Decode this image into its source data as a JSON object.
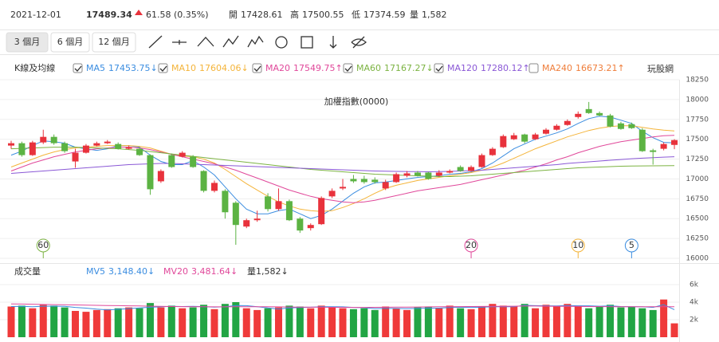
{
  "header": {
    "date": "2021-12-01",
    "price": "17489.34",
    "change": "61.58 (0.35%)",
    "items": [
      {
        "label": "開",
        "value": "17428.61"
      },
      {
        "label": "高",
        "value": "17500.55"
      },
      {
        "label": "低",
        "value": "17374.59"
      },
      {
        "label": "量",
        "value": "1,582"
      }
    ]
  },
  "toolbar": {
    "ranges": [
      "3 個月",
      "6 個月",
      "12 個月"
    ],
    "active": 0
  },
  "brand": "玩股網",
  "chart_data": [
    {
      "type": "candlestick",
      "title": "加權指數(0000)",
      "legend_title": "K線及均線",
      "up_color": "#e8323c",
      "down_color": "#5cb343",
      "open": [
        17420,
        17450,
        17300,
        17460,
        17530,
        17450,
        17220,
        17330,
        17420,
        17450,
        17440,
        17380,
        17380,
        17300,
        16970,
        17300,
        17280,
        17280,
        17100,
        16850,
        16850,
        16700,
        16400,
        16480,
        16780,
        16620,
        16720,
        16500,
        16380,
        16430,
        16780,
        16880,
        17000,
        17000,
        16990,
        16880,
        16960,
        17040,
        17080,
        17080,
        17040,
        17080,
        17150,
        17100,
        17150,
        17300,
        17400,
        17500,
        17560,
        17500,
        17570,
        17620,
        17680,
        17780,
        17880,
        17830,
        17800,
        17700,
        17690,
        17620,
        17360,
        17380,
        17428.61
      ],
      "high": [
        17480,
        17470,
        17480,
        17620,
        17560,
        17470,
        17380,
        17440,
        17470,
        17490,
        17460,
        17420,
        17400,
        17310,
        17120,
        17320,
        17350,
        17300,
        17110,
        16980,
        16870,
        16720,
        16500,
        16600,
        16820,
        16880,
        16740,
        16520,
        16440,
        16780,
        16880,
        17000,
        17050,
        17040,
        17020,
        16990,
        17080,
        17100,
        17100,
        17090,
        17110,
        17120,
        17170,
        17170,
        17320,
        17400,
        17560,
        17580,
        17570,
        17580,
        17640,
        17690,
        17750,
        17850,
        17970,
        17850,
        17820,
        17720,
        17710,
        17640,
        17380,
        17460,
        17500.55
      ],
      "low": [
        17380,
        17280,
        17290,
        17440,
        17430,
        17330,
        17140,
        17320,
        17410,
        17440,
        17370,
        17370,
        17290,
        16800,
        16950,
        17140,
        17270,
        17140,
        16830,
        16830,
        16500,
        16170,
        16380,
        16460,
        16590,
        16600,
        16470,
        16320,
        16350,
        16420,
        16760,
        16860,
        16950,
        16940,
        16940,
        16860,
        16950,
        17020,
        17030,
        16990,
        17030,
        17070,
        17090,
        17090,
        17140,
        17290,
        17390,
        17490,
        17450,
        17490,
        17560,
        17610,
        17670,
        17760,
        17820,
        17790,
        17650,
        17620,
        17630,
        17340,
        17180,
        17360,
        17374.59
      ],
      "close": [
        17450,
        17300,
        17460,
        17530,
        17450,
        17350,
        17330,
        17420,
        17450,
        17470,
        17380,
        17400,
        17300,
        16870,
        17100,
        17150,
        17330,
        17150,
        16850,
        16950,
        16580,
        16420,
        16480,
        16500,
        16620,
        16720,
        16480,
        16350,
        16420,
        16760,
        16850,
        16900,
        16970,
        16960,
        16960,
        16960,
        17060,
        17070,
        17040,
        17000,
        17080,
        17100,
        17100,
        17150,
        17300,
        17380,
        17540,
        17550,
        17470,
        17560,
        17620,
        17670,
        17730,
        17820,
        17830,
        17800,
        17660,
        17630,
        17640,
        17350,
        17340,
        17440,
        17489.34
      ],
      "ylim": [
        16000,
        18250
      ],
      "yticks": [
        16000,
        16250,
        16500,
        16750,
        17000,
        17250,
        17500,
        17750,
        18000,
        18250
      ],
      "grid": true,
      "series": [
        {
          "name": "MA5",
          "color": "#3b8de0",
          "checked": true,
          "value_label": "17453.75↓",
          "values": [
            17300,
            17350,
            17420,
            17480,
            17470,
            17450,
            17400,
            17380,
            17360,
            17380,
            17420,
            17420,
            17400,
            17300,
            17220,
            17180,
            17180,
            17230,
            17150,
            17050,
            16900,
            16750,
            16620,
            16560,
            16560,
            16600,
            16620,
            16560,
            16500,
            16540,
            16620,
            16720,
            16820,
            16900,
            16950,
            16960,
            16980,
            17000,
            17020,
            17030,
            17040,
            17060,
            17070,
            17090,
            17130,
            17200,
            17290,
            17380,
            17440,
            17500,
            17540,
            17580,
            17630,
            17700,
            17760,
            17790,
            17780,
            17740,
            17700,
            17600,
            17520,
            17460,
            17453.75
          ]
        },
        {
          "name": "MA10",
          "color": "#f4b43a",
          "checked": true,
          "value_label": "17604.06↓",
          "values": [
            17150,
            17200,
            17250,
            17300,
            17340,
            17370,
            17390,
            17400,
            17410,
            17420,
            17420,
            17420,
            17410,
            17390,
            17350,
            17310,
            17290,
            17280,
            17250,
            17200,
            17120,
            17030,
            16940,
            16860,
            16780,
            16710,
            16660,
            16620,
            16600,
            16590,
            16600,
            16640,
            16690,
            16750,
            16820,
            16880,
            16920,
            16950,
            16980,
            17000,
            17020,
            17040,
            17060,
            17080,
            17110,
            17150,
            17200,
            17260,
            17320,
            17380,
            17430,
            17480,
            17530,
            17570,
            17610,
            17640,
            17660,
            17670,
            17670,
            17650,
            17630,
            17615,
            17604.06
          ]
        },
        {
          "name": "MA20",
          "color": "#e0489a",
          "checked": true,
          "value_label": "17549.75↑",
          "values": [
            17100,
            17150,
            17200,
            17240,
            17280,
            17310,
            17340,
            17360,
            17380,
            17390,
            17400,
            17400,
            17390,
            17370,
            17340,
            17310,
            17280,
            17250,
            17220,
            17190,
            17150,
            17110,
            17060,
            17010,
            16960,
            16910,
            16860,
            16820,
            16780,
            16750,
            16730,
            16710,
            16700,
            16710,
            16730,
            16760,
            16790,
            16820,
            16850,
            16870,
            16890,
            16910,
            16930,
            16960,
            16990,
            17020,
            17050,
            17080,
            17110,
            17150,
            17190,
            17240,
            17280,
            17330,
            17370,
            17410,
            17440,
            17470,
            17490,
            17510,
            17530,
            17545,
            17549.75
          ]
        },
        {
          "name": "MA60",
          "color": "#7cb342",
          "checked": true,
          "value_label": "17167.27↓",
          "values": [
            17380,
            17385,
            17390,
            17395,
            17400,
            17400,
            17400,
            17395,
            17390,
            17385,
            17380,
            17370,
            17360,
            17345,
            17330,
            17315,
            17300,
            17285,
            17270,
            17255,
            17240,
            17225,
            17210,
            17195,
            17180,
            17165,
            17150,
            17135,
            17120,
            17110,
            17100,
            17090,
            17080,
            17070,
            17060,
            17055,
            17050,
            17045,
            17040,
            17035,
            17030,
            17030,
            17035,
            17040,
            17050,
            17060,
            17070,
            17080,
            17090,
            17100,
            17110,
            17120,
            17130,
            17140,
            17145,
            17150,
            17155,
            17160,
            17162,
            17164,
            17165,
            17166,
            17167.27
          ]
        },
        {
          "name": "MA120",
          "color": "#8a58d6",
          "checked": true,
          "value_label": "17280.12↑",
          "values": [
            17070,
            17080,
            17090,
            17100,
            17110,
            17120,
            17130,
            17140,
            17150,
            17160,
            17170,
            17180,
            17185,
            17190,
            17195,
            17195,
            17190,
            17185,
            17180,
            17175,
            17170,
            17165,
            17160,
            17155,
            17150,
            17145,
            17140,
            17135,
            17130,
            17125,
            17120,
            17115,
            17110,
            17105,
            17100,
            17097,
            17095,
            17093,
            17092,
            17090,
            17092,
            17095,
            17100,
            17105,
            17110,
            17120,
            17130,
            17140,
            17150,
            17160,
            17170,
            17180,
            17195,
            17205,
            17215,
            17225,
            17235,
            17245,
            17255,
            17262,
            17268,
            17275,
            17280.12
          ]
        },
        {
          "name": "MA240",
          "color": "#ef7d3a",
          "checked": false,
          "value_label": "16673.21↑"
        }
      ],
      "annotations": [
        {
          "text": 60,
          "series": "MA60"
        },
        {
          "text": 20,
          "series": "MA20"
        },
        {
          "text": 10,
          "series": "MA10"
        },
        {
          "text": 5,
          "series": "MA5"
        }
      ]
    },
    {
      "type": "bar",
      "title": "成交量",
      "up_color": "#ef3a3a",
      "down_color": "#22a544",
      "values": [
        3500,
        3600,
        3300,
        3700,
        3600,
        3400,
        3000,
        2900,
        3100,
        3200,
        3300,
        3400,
        3300,
        3900,
        3400,
        3600,
        3300,
        3400,
        3700,
        3200,
        3800,
        4000,
        3300,
        3100,
        3300,
        3400,
        3600,
        3500,
        3300,
        3600,
        3400,
        3300,
        3200,
        3300,
        3100,
        3500,
        3300,
        3100,
        3400,
        3500,
        3300,
        3600,
        3300,
        3200,
        3500,
        3800,
        3600,
        3500,
        3800,
        3300,
        3700,
        3500,
        3800,
        3600,
        3300,
        3500,
        3700,
        3400,
        3500,
        3300,
        3100,
        4300,
        1582
      ],
      "ylim": [
        0,
        6000
      ],
      "yticks": [
        {
          "value": 2000,
          "label": "2k"
        },
        {
          "value": 4000,
          "label": "4k"
        },
        {
          "value": 6000,
          "label": "6k"
        }
      ],
      "series": [
        {
          "name": "MV5",
          "color": "#3b8de0",
          "value_label": "3,148.40↓",
          "values": [
            3500,
            3520,
            3480,
            3540,
            3540,
            3520,
            3400,
            3320,
            3200,
            3120,
            3180,
            3260,
            3340,
            3420,
            3460,
            3520,
            3500,
            3520,
            3480,
            3440,
            3480,
            3620,
            3600,
            3480,
            3340,
            3220,
            3340,
            3380,
            3420,
            3480,
            3480,
            3460,
            3400,
            3360,
            3260,
            3280,
            3280,
            3260,
            3280,
            3320,
            3320,
            3380,
            3420,
            3400,
            3420,
            3480,
            3480,
            3480,
            3640,
            3600,
            3580,
            3560,
            3620,
            3580,
            3580,
            3540,
            3580,
            3500,
            3480,
            3480,
            3400,
            3720,
            3148.4
          ]
        },
        {
          "name": "MV20",
          "color": "#e0489a",
          "value_label": "3,481.64↓",
          "values": [
            3800,
            3780,
            3760,
            3740,
            3720,
            3700,
            3680,
            3660,
            3640,
            3620,
            3600,
            3580,
            3560,
            3540,
            3520,
            3500,
            3490,
            3480,
            3470,
            3460,
            3460,
            3470,
            3480,
            3480,
            3470,
            3460,
            3450,
            3440,
            3430,
            3420,
            3410,
            3400,
            3400,
            3400,
            3410,
            3420,
            3430,
            3440,
            3450,
            3460,
            3470,
            3480,
            3490,
            3500,
            3510,
            3520,
            3530,
            3540,
            3550,
            3550,
            3540,
            3530,
            3520,
            3510,
            3500,
            3490,
            3480,
            3475,
            3470,
            3478,
            3480,
            3481,
            3481.64
          ]
        },
        {
          "name": "量",
          "color": "#333333",
          "value_label": "1,582↓"
        }
      ]
    }
  ]
}
